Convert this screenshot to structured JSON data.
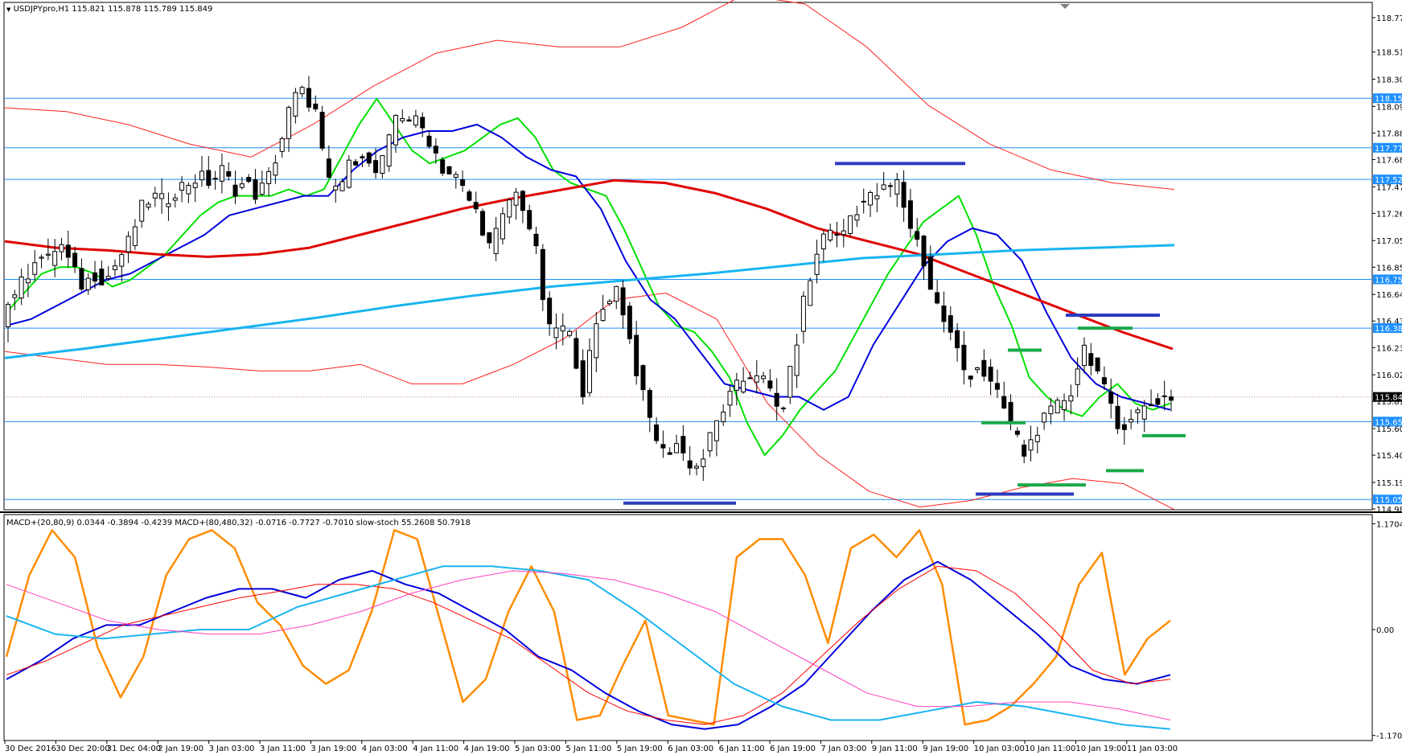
{
  "window": {
    "symbol_line": "USDJPYpro,H1  115.821 115.878 115.789 115.849",
    "indicator_line": "MACD+(20,80,9) 0.0344 -0.3894 -0.4239   MACD+(80,480,32) -0.0716 -0.7727 -0.7010   slow-stoch 55.2608 50.7918"
  },
  "colors": {
    "background": "#ffffff",
    "candle": "#000000",
    "hline": "#1e90ff",
    "fast_ma": "#00e000",
    "mid_ma": "#0000dd",
    "slow_ma": "#e00000",
    "long_ma": "#18b4f0",
    "band": "#ff2020",
    "marker_blue": "#2b3bbf",
    "marker_green": "#1aa84a",
    "stoch": "#ff8c00",
    "macd_signal": "#ff0000",
    "macd2_signal": "#ff40c0"
  },
  "chart_data": [
    {
      "type": "candlestick",
      "title": "USDJPYpro,H1",
      "ylim": [
        114.985,
        118.88
      ],
      "price_ticks": [
        "118.775",
        "118.510",
        "118.300",
        "118.090",
        "117.885",
        "117.680",
        "117.470",
        "117.265",
        "117.055",
        "116.850",
        "116.640",
        "116.435",
        "116.230",
        "116.020",
        "115.815",
        "115.605",
        "115.400",
        "115.190",
        "114.985"
      ],
      "levels": [
        {
          "value": 118.153,
          "label": "118.153"
        },
        {
          "value": 117.771,
          "label": "117.771"
        },
        {
          "value": 117.527,
          "label": "117.527"
        },
        {
          "value": 116.756,
          "label": "116.756"
        },
        {
          "value": 116.38,
          "label": "116.380"
        },
        {
          "value": 115.659,
          "label": "115.659"
        },
        {
          "value": 115.058,
          "label": "115.058"
        }
      ],
      "current_price": {
        "value": 115.849,
        "label": "115.849"
      },
      "x_labels": [
        "30 Dec 2016",
        "30 Dec 20:00",
        "31 Dec 04:00",
        "2 Jan 19:00",
        "3 Jan 03:00",
        "3 Jan 11:00",
        "3 Jan 19:00",
        "4 Jan 03:00",
        "4 Jan 11:00",
        "4 Jan 19:00",
        "5 Jan 03:00",
        "5 Jan 11:00",
        "5 Jan 19:00",
        "6 Jan 03:00",
        "6 Jan 11:00",
        "6 Jan 19:00",
        "7 Jan 03:00",
        "9 Jan 11:00",
        "9 Jan 19:00",
        "10 Jan 03:00",
        "10 Jan 11:00",
        "10 Jan 19:00",
        "11 Jan 03:00"
      ],
      "close_path": [
        116.45,
        116.65,
        116.75,
        116.95,
        116.9,
        117.05,
        116.85,
        116.7,
        116.8,
        116.75,
        116.9,
        117.05,
        117.3,
        117.4,
        117.35,
        117.45,
        117.5,
        117.55,
        117.5,
        117.6,
        117.45,
        117.5,
        117.4,
        117.55,
        117.8,
        118.15,
        118.2,
        118.05,
        117.5,
        117.45,
        117.65,
        117.75,
        117.55,
        117.7,
        118.05,
        118.0,
        117.95,
        117.8,
        117.6,
        117.55,
        117.4,
        117.25,
        117.0,
        117.2,
        117.45,
        117.3,
        116.95,
        116.35,
        116.4,
        116.3,
        115.9,
        116.35,
        116.6,
        116.7,
        116.3,
        115.9,
        115.6,
        115.4,
        115.5,
        115.35,
        115.3,
        115.55,
        115.75,
        115.9,
        116.0,
        116.05,
        115.9,
        115.7,
        116.1,
        116.6,
        116.9,
        117.2,
        117.05,
        117.25,
        117.35,
        117.4,
        117.45,
        117.5,
        117.2,
        117.0,
        116.65,
        116.45,
        116.25,
        116.0,
        116.1,
        115.95,
        115.8,
        115.6,
        115.4,
        115.6,
        115.7,
        115.8,
        115.9,
        116.25,
        116.1,
        115.85,
        115.6,
        115.7,
        115.75,
        115.8,
        115.85
      ],
      "series": [
        {
          "name": "",
          "color_key": "fast_ma",
          "values": [
            116.5,
            116.65,
            116.8,
            116.85,
            116.85,
            116.8,
            116.7,
            116.75,
            116.85,
            116.95,
            117.1,
            117.25,
            117.35,
            117.4,
            117.4,
            117.4,
            117.45,
            117.4,
            117.45,
            117.7,
            117.95,
            118.15,
            117.95,
            117.75,
            117.65,
            117.7,
            117.75,
            117.85,
            117.95,
            118.0,
            117.85,
            117.6,
            117.5,
            117.45,
            117.4,
            117.15,
            116.85,
            116.55,
            116.4,
            116.35,
            116.2,
            116.0,
            115.65,
            115.4,
            115.55,
            115.75,
            115.9,
            116.05,
            116.3,
            116.55,
            116.8,
            117.0,
            117.2,
            117.3,
            117.4,
            117.1,
            116.7,
            116.4,
            116.0,
            115.85,
            115.75,
            115.7,
            115.85,
            115.95,
            115.8,
            115.75,
            115.8
          ]
        },
        {
          "name": "",
          "color_key": "mid_ma",
          "values": [
            116.4,
            116.45,
            116.55,
            116.65,
            116.75,
            116.8,
            116.9,
            117.0,
            117.1,
            117.25,
            117.3,
            117.35,
            117.4,
            117.4,
            117.6,
            117.75,
            117.85,
            117.9,
            117.9,
            117.95,
            117.85,
            117.7,
            117.6,
            117.55,
            117.3,
            116.9,
            116.6,
            116.45,
            116.2,
            115.95,
            115.9,
            115.85,
            115.85,
            115.75,
            115.85,
            116.25,
            116.55,
            116.85,
            117.05,
            117.15,
            117.1,
            116.9,
            116.5,
            116.15,
            115.95,
            115.85,
            115.8,
            115.75
          ]
        },
        {
          "name": "",
          "color_key": "slow_ma",
          "values": [
            117.05,
            117.0,
            116.98,
            116.95,
            116.93,
            116.95,
            117.0,
            117.1,
            117.2,
            117.3,
            117.38,
            117.45,
            117.52,
            117.5,
            117.42,
            117.3,
            117.15,
            117.05,
            116.95,
            116.8,
            116.65,
            116.5,
            116.35,
            116.22
          ]
        },
        {
          "name": "",
          "color_key": "long_ma",
          "values": [
            116.15,
            116.22,
            116.3,
            116.38,
            116.46,
            116.55,
            116.63,
            116.7,
            116.75,
            116.8,
            116.86,
            116.92,
            116.95,
            116.98,
            117.0,
            117.02
          ]
        },
        {
          "name": "",
          "color_key": "band",
          "values": [
            118.08,
            118.05,
            117.95,
            117.8,
            117.7,
            117.95,
            118.25,
            118.5,
            118.6,
            118.55,
            118.55,
            118.7,
            118.95,
            118.88,
            118.55,
            118.1,
            117.8,
            117.6,
            117.5,
            117.45
          ]
        },
        {
          "name": "",
          "color_key": "band",
          "values": [
            116.2,
            116.15,
            116.1,
            116.1,
            116.08,
            116.05,
            116.05,
            116.1,
            115.95,
            115.95,
            116.1,
            116.3,
            116.6,
            116.65,
            116.45,
            115.8,
            115.4,
            115.12,
            115.0,
            115.05,
            115.15,
            115.22,
            115.18,
            114.98
          ]
        }
      ],
      "markers": [
        {
          "color_key": "marker_blue",
          "value": 117.65
        },
        {
          "color_key": "marker_blue",
          "value": 116.48
        },
        {
          "color_key": "marker_blue",
          "value": 115.1
        },
        {
          "color_key": "marker_blue",
          "value": 115.03
        },
        {
          "color_key": "marker_green",
          "value": 116.38
        },
        {
          "color_key": "marker_green",
          "value": 116.21
        },
        {
          "color_key": "marker_green",
          "value": 115.65
        },
        {
          "color_key": "marker_green",
          "value": 115.55
        },
        {
          "color_key": "marker_green",
          "value": 115.28
        },
        {
          "color_key": "marker_green",
          "value": 115.17
        }
      ]
    },
    {
      "type": "line",
      "title": "MACD+(20,80,9) / MACD+(80,480,32) / slow-stoch",
      "ylim": [
        -1.2,
        1.2
      ],
      "ticks": [
        {
          "value": 1.1704,
          "label": "1.1704"
        },
        {
          "value": 0.0,
          "label": "0.00"
        },
        {
          "value": -1.1704,
          "label": "-1.1704"
        }
      ],
      "series": [
        {
          "name": "",
          "color_key": "stoch",
          "values": [
            -0.3,
            0.6,
            1.1,
            0.8,
            -0.2,
            -0.75,
            -0.3,
            0.6,
            1.0,
            1.1,
            0.9,
            0.3,
            0.05,
            -0.4,
            -0.6,
            -0.45,
            0.2,
            1.1,
            1.0,
            0.1,
            -0.8,
            -0.55,
            0.2,
            0.7,
            0.2,
            -1.0,
            -0.95,
            -0.4,
            0.1,
            -0.95,
            -1.0,
            -1.05,
            0.8,
            1.0,
            1.0,
            0.6,
            -0.15,
            0.9,
            1.05,
            0.8,
            1.1,
            0.5,
            -1.05,
            -1.0,
            -0.85,
            -0.6,
            -0.3,
            0.5,
            0.85,
            -0.5,
            -0.1,
            0.1
          ]
        },
        {
          "name": "",
          "color_key": "mid_ma",
          "values": [
            -0.55,
            -0.35,
            -0.1,
            0.05,
            0.05,
            0.2,
            0.35,
            0.45,
            0.45,
            0.35,
            0.55,
            0.65,
            0.5,
            0.4,
            0.2,
            0.0,
            -0.3,
            -0.45,
            -0.7,
            -0.9,
            -1.05,
            -1.1,
            -1.05,
            -0.85,
            -0.6,
            -0.2,
            0.2,
            0.55,
            0.75,
            0.55,
            0.25,
            -0.05,
            -0.4,
            -0.55,
            -0.6,
            -0.5
          ]
        },
        {
          "name": "",
          "color_key": "macd_signal",
          "values": [
            -0.5,
            -0.35,
            -0.15,
            0.05,
            0.15,
            0.25,
            0.35,
            0.42,
            0.5,
            0.5,
            0.45,
            0.3,
            0.1,
            -0.1,
            -0.4,
            -0.7,
            -0.9,
            -1.0,
            -1.05,
            -0.95,
            -0.7,
            -0.3,
            0.1,
            0.45,
            0.7,
            0.65,
            0.4,
            0.0,
            -0.45,
            -0.6,
            -0.55
          ]
        },
        {
          "name": "",
          "color_key": "long_ma",
          "values": [
            0.15,
            -0.05,
            -0.1,
            -0.05,
            0.0,
            0.0,
            0.25,
            0.4,
            0.55,
            0.7,
            0.7,
            0.65,
            0.55,
            0.2,
            -0.2,
            -0.6,
            -0.85,
            -1.0,
            -1.0,
            -0.9,
            -0.8,
            -0.85,
            -0.95,
            -1.05,
            -1.1
          ]
        },
        {
          "name": "",
          "color_key": "macd2_signal",
          "values": [
            0.5,
            0.3,
            0.1,
            0.0,
            -0.05,
            -0.05,
            0.05,
            0.2,
            0.4,
            0.55,
            0.65,
            0.62,
            0.55,
            0.4,
            0.2,
            -0.1,
            -0.4,
            -0.7,
            -0.85,
            -0.85,
            -0.8,
            -0.8,
            -0.88,
            -1.0
          ]
        }
      ]
    }
  ]
}
